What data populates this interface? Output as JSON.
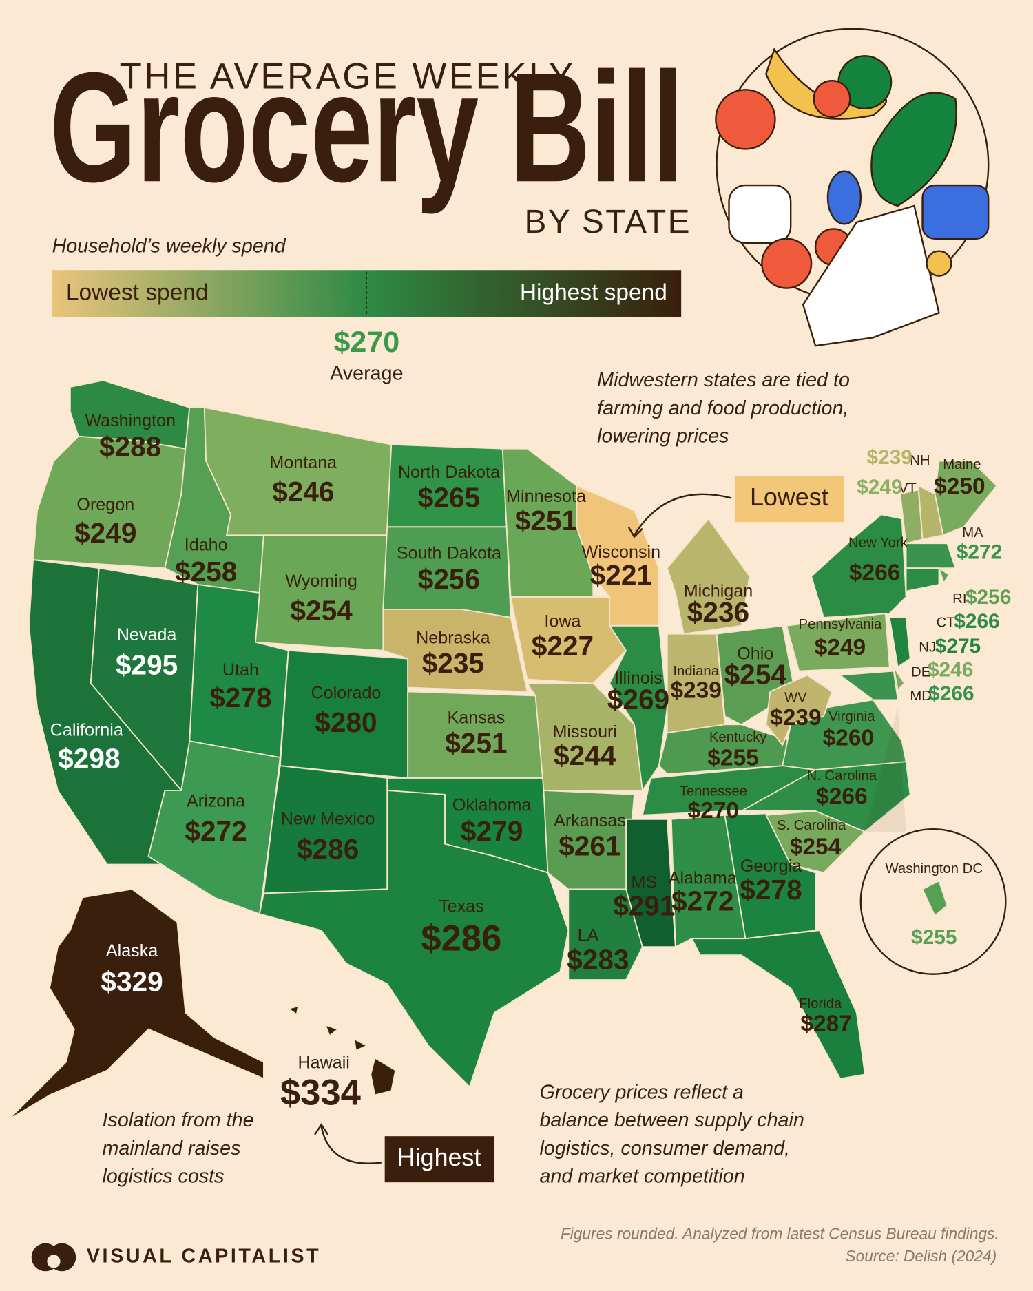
{
  "header": {
    "kicker": "THE AVERAGE WEEKLY",
    "title": "Grocery Bill",
    "subtitle": "BY STATE"
  },
  "legend": {
    "caption": "Household’s weekly spend",
    "low": "Lowest spend",
    "high": "Highest spend",
    "average_value": "$270",
    "average_label": "Average"
  },
  "states": [
    {
      "name": "Washington",
      "value": "$288",
      "color": "#2c8a45"
    },
    {
      "name": "Oregon",
      "value": "$249",
      "color": "#6ea858"
    },
    {
      "name": "California",
      "value": "$298",
      "color": "#1c733a"
    },
    {
      "name": "Nevada",
      "value": "$295",
      "color": "#1e773c"
    },
    {
      "name": "Idaho",
      "value": "$258",
      "color": "#55a053"
    },
    {
      "name": "Montana",
      "value": "$246",
      "color": "#80ae5f"
    },
    {
      "name": "Wyoming",
      "value": "$254",
      "color": "#6aa757"
    },
    {
      "name": "Utah",
      "value": "$278",
      "color": "#1f8a45"
    },
    {
      "name": "Colorado",
      "value": "$280",
      "color": "#17803f"
    },
    {
      "name": "Arizona",
      "value": "$272",
      "color": "#3c9a52"
    },
    {
      "name": "New Mexico",
      "value": "$286",
      "color": "#167a3d"
    },
    {
      "name": "North Dakota",
      "value": "$265",
      "color": "#2f9348"
    },
    {
      "name": "South Dakota",
      "value": "$256",
      "color": "#4f9d52"
    },
    {
      "name": "Nebraska",
      "value": "$235",
      "color": "#c9b46a"
    },
    {
      "name": "Kansas",
      "value": "$251",
      "color": "#72a85a"
    },
    {
      "name": "Oklahoma",
      "value": "$279",
      "color": "#18843f"
    },
    {
      "name": "Texas",
      "value": "$286",
      "color": "#1d8440"
    },
    {
      "name": "Minnesota",
      "value": "$251",
      "color": "#6aa757"
    },
    {
      "name": "Iowa",
      "value": "$227",
      "color": "#d6bd6f"
    },
    {
      "name": "Missouri",
      "value": "$244",
      "color": "#a7b468"
    },
    {
      "name": "Arkansas",
      "value": "$261",
      "color": "#5a9c52"
    },
    {
      "name": "LA",
      "value": "$283",
      "color": "#1f8040"
    },
    {
      "name": "Wisconsin",
      "value": "$221",
      "color": "#f0c57a"
    },
    {
      "name": "Illinois",
      "value": "$269",
      "color": "#2b8c45"
    },
    {
      "name": "Michigan",
      "value": "$236",
      "color": "#b9b56c"
    },
    {
      "name": "Indiana",
      "value": "$239",
      "color": "#bcb56e"
    },
    {
      "name": "Ohio",
      "value": "$254",
      "color": "#5c9d54"
    },
    {
      "name": "Kentucky",
      "value": "$255",
      "color": "#4e9a50"
    },
    {
      "name": "Tennessee",
      "value": "$270",
      "color": "#2b8c46"
    },
    {
      "name": "MS",
      "value": "$291",
      "color": "#0f5f2f"
    },
    {
      "name": "Alabama",
      "value": "$272",
      "color": "#2f8e48"
    },
    {
      "name": "Georgia",
      "value": "$278",
      "color": "#1a8440"
    },
    {
      "name": "Florida",
      "value": "$287",
      "color": "#1b7f3e"
    },
    {
      "name": "S. Carolina",
      "value": "$254",
      "color": "#78aa5e"
    },
    {
      "name": "N. Carolina",
      "value": "$266",
      "color": "#2e8d47"
    },
    {
      "name": "Virginia",
      "value": "$260",
      "color": "#3f9650"
    },
    {
      "name": "WV",
      "value": "$239",
      "color": "#c1b56e"
    },
    {
      "name": "Pennsylvania",
      "value": "$249",
      "color": "#7aaa5e"
    },
    {
      "name": "New York",
      "value": "$266",
      "color": "#2b8c46"
    },
    {
      "name": "Maine",
      "value": "$250",
      "color": "#7aaa5e"
    },
    {
      "name": "NH",
      "value": "$239",
      "color": "#b4b46b"
    },
    {
      "name": "VT",
      "value": "$249",
      "color": "#8eae63"
    },
    {
      "name": "MA",
      "value": "$272",
      "color": "#3a9450"
    },
    {
      "name": "RI",
      "value": "$256",
      "color": "#5da055"
    },
    {
      "name": "CT",
      "value": "$266",
      "color": "#2d8c47"
    },
    {
      "name": "NJ",
      "value": "$275",
      "color": "#21843f"
    },
    {
      "name": "DE",
      "value": "$246",
      "color": "#7aaa5e"
    },
    {
      "name": "MD",
      "value": "$266",
      "color": "#3a9450"
    },
    {
      "name": "Alaska",
      "value": "$329",
      "color": "#3a1f0c"
    },
    {
      "name": "Hawaii",
      "value": "$334",
      "color": "#3a1f0c"
    },
    {
      "name": "Washington DC",
      "value": "$255",
      "color": "#55a053"
    }
  ],
  "callouts": {
    "lowest": "Lowest",
    "highest": "Highest"
  },
  "annotations": {
    "midwest": [
      "Midwestern states are tied to",
      "farming and food production,",
      "lowering prices"
    ],
    "isolation": [
      "Isolation from the",
      "mainland raises",
      "logistics costs"
    ],
    "prices": [
      "Grocery prices reflect a",
      "balance between supply chain",
      "logistics, consumer demand,",
      "and market competition"
    ]
  },
  "footer": {
    "note": "Figures rounded. Analyzed from latest Census Bureau findings.",
    "source": "Source: Delish (2024)",
    "brand": "VISUAL CAPITALIST"
  }
}
